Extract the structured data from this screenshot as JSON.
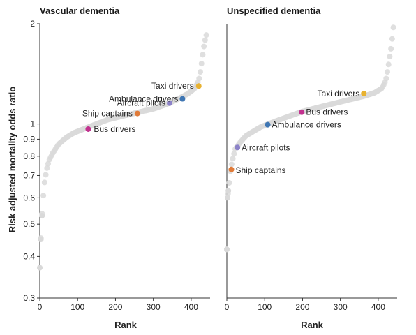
{
  "chart_data": [
    {
      "type": "scatter",
      "title": "Vascular dementia",
      "xlabel": "Rank",
      "ylabel": "Risk adjusted mortality odds ratio",
      "xlim": [
        0,
        450
      ],
      "ylim": [
        0.3,
        2
      ],
      "yscale": "log",
      "xticks": [
        0,
        100,
        200,
        300,
        400
      ],
      "yticks": [
        0.3,
        0.4,
        0.5,
        0.6,
        0.7,
        0.8,
        0.9,
        1,
        2
      ],
      "background_series": {
        "color": "#d9d9d9",
        "points": [
          [
            0,
            0.37
          ],
          [
            3,
            0.45
          ],
          [
            6,
            0.53
          ],
          [
            9,
            0.6
          ],
          [
            12,
            0.66
          ],
          [
            18,
            0.73
          ],
          [
            25,
            0.78
          ],
          [
            35,
            0.82
          ],
          [
            50,
            0.87
          ],
          [
            70,
            0.91
          ],
          [
            90,
            0.94
          ],
          [
            110,
            0.96
          ],
          [
            130,
            0.98
          ],
          [
            150,
            1.0
          ],
          [
            180,
            1.03
          ],
          [
            210,
            1.05
          ],
          [
            240,
            1.07
          ],
          [
            270,
            1.09
          ],
          [
            300,
            1.11
          ],
          [
            330,
            1.14
          ],
          [
            360,
            1.18
          ],
          [
            390,
            1.23
          ],
          [
            410,
            1.28
          ],
          [
            420,
            1.35
          ],
          [
            425,
            1.45
          ],
          [
            430,
            1.6
          ],
          [
            435,
            1.75
          ],
          [
            440,
            1.85
          ]
        ]
      },
      "highlighted": [
        {
          "label": "Bus drivers",
          "x": 128,
          "y": 0.965,
          "color": "#c2328f"
        },
        {
          "label": "Ship captains",
          "x": 258,
          "y": 1.075,
          "color": "#e07b39"
        },
        {
          "label": "Aircraft pilots",
          "x": 343,
          "y": 1.155,
          "color": "#8c82c8"
        },
        {
          "label": "Ambulance drivers",
          "x": 377,
          "y": 1.19,
          "color": "#3f76b3"
        },
        {
          "label": "Taxi drivers",
          "x": 420,
          "y": 1.3,
          "color": "#e8b231"
        }
      ]
    },
    {
      "type": "scatter",
      "title": "Unspecified dementia",
      "xlabel": "Rank",
      "ylabel": "",
      "xlim": [
        0,
        450
      ],
      "ylim": [
        0.3,
        2
      ],
      "yscale": "log",
      "xticks": [
        0,
        100,
        200,
        300,
        400
      ],
      "background_series": {
        "color": "#d9d9d9",
        "points": [
          [
            0,
            0.42
          ],
          [
            2,
            0.6
          ],
          [
            4,
            0.63
          ],
          [
            6,
            0.66
          ],
          [
            10,
            0.73
          ],
          [
            15,
            0.78
          ],
          [
            22,
            0.84
          ],
          [
            35,
            0.88
          ],
          [
            50,
            0.92
          ],
          [
            70,
            0.95
          ],
          [
            90,
            0.98
          ],
          [
            110,
            1.0
          ],
          [
            140,
            1.03
          ],
          [
            170,
            1.06
          ],
          [
            200,
            1.09
          ],
          [
            240,
            1.12
          ],
          [
            280,
            1.15
          ],
          [
            320,
            1.18
          ],
          [
            360,
            1.21
          ],
          [
            390,
            1.24
          ],
          [
            410,
            1.28
          ],
          [
            420,
            1.35
          ],
          [
            425,
            1.45
          ],
          [
            430,
            1.58
          ],
          [
            435,
            1.72
          ],
          [
            440,
            1.95
          ]
        ]
      },
      "highlighted": [
        {
          "label": "Ship captains",
          "x": 12,
          "y": 0.73,
          "color": "#e07b39"
        },
        {
          "label": "Aircraft pilots",
          "x": 28,
          "y": 0.85,
          "color": "#8c82c8"
        },
        {
          "label": "Ambulance drivers",
          "x": 108,
          "y": 0.995,
          "color": "#3f76b3"
        },
        {
          "label": "Bus drivers",
          "x": 198,
          "y": 1.085,
          "color": "#c2328f"
        },
        {
          "label": "Taxi drivers",
          "x": 362,
          "y": 1.235,
          "color": "#e8b231"
        }
      ]
    }
  ]
}
